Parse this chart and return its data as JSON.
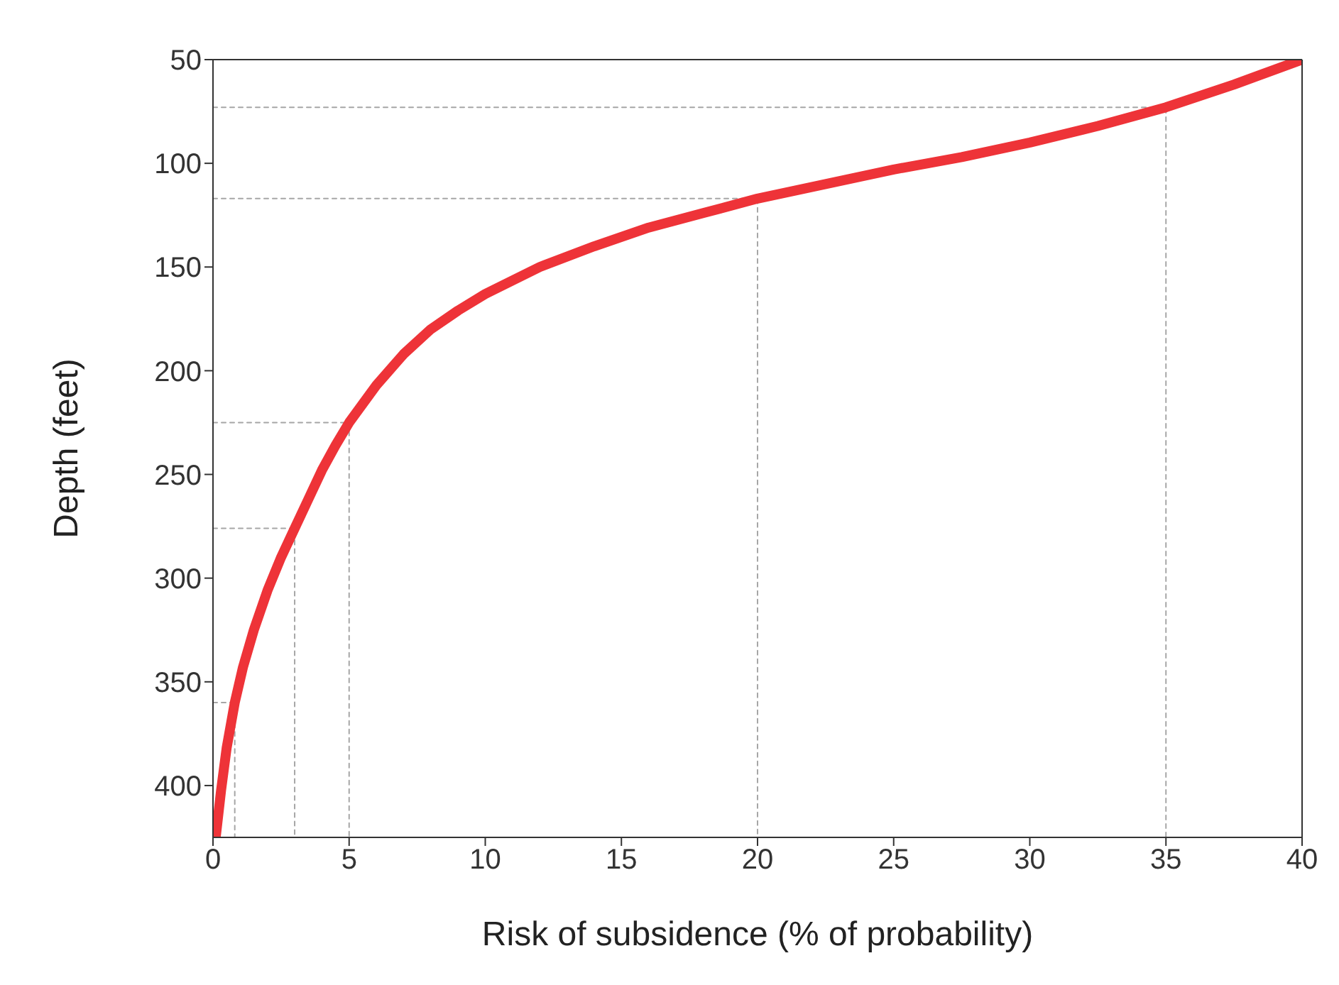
{
  "chart_data": {
    "type": "line",
    "xlabel": "Risk of subsidence (% of probability)",
    "ylabel": "Depth (feet)",
    "xlim": [
      0,
      40
    ],
    "xticks": [
      0,
      5,
      10,
      15,
      20,
      25,
      30,
      35,
      40
    ],
    "ylim": [
      425,
      50
    ],
    "yticks": [
      50,
      100,
      150,
      200,
      250,
      300,
      350,
      400
    ],
    "marker": "none",
    "series": [
      {
        "color": "#ee3338",
        "line_style": "solid",
        "x": [
          0.1,
          0.3,
          0.5,
          0.8,
          1.1,
          1.5,
          2,
          2.5,
          3,
          3.5,
          4,
          4.5,
          5,
          6,
          7,
          8,
          9,
          10,
          12,
          14,
          16,
          18,
          20,
          22.5,
          25,
          27.5,
          30,
          32.5,
          35,
          37.5,
          40
        ],
        "values": [
          425,
          402,
          382,
          360,
          343,
          325,
          306,
          290,
          276,
          262,
          248,
          236,
          225,
          207,
          192,
          180,
          171,
          163,
          150,
          140,
          131,
          124,
          117,
          110,
          103,
          97,
          90,
          82,
          73,
          62,
          50
        ]
      },
      {
        "color": "#a6a6a6",
        "line_style": "dotted",
        "x": [
          0,
          35,
          35
        ],
        "values": [
          73,
          73,
          425
        ]
      },
      {
        "color": "#a6a6a6",
        "line_style": "dotted",
        "x": [
          0,
          20,
          20
        ],
        "values": [
          117,
          117,
          425
        ]
      },
      {
        "color": "#a6a6a6",
        "line_style": "dotted",
        "x": [
          0,
          5,
          5
        ],
        "values": [
          225,
          225,
          425
        ]
      },
      {
        "color": "#a6a6a6",
        "line_style": "dotted",
        "x": [
          0,
          3,
          3
        ],
        "values": [
          276,
          276,
          425
        ]
      },
      {
        "color": "#a6a6a6",
        "line_style": "dotted",
        "x": [
          0,
          0.8,
          0.8
        ],
        "values": [
          360,
          360,
          425
        ]
      }
    ]
  }
}
